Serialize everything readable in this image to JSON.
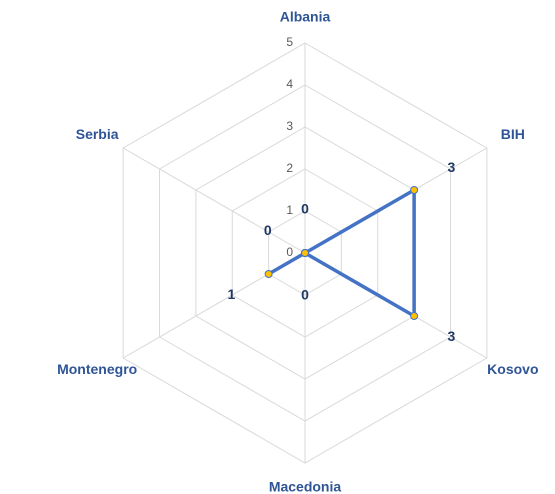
{
  "chart_data": {
    "type": "radar",
    "categories": [
      "Albania",
      "BIH",
      "Kosovo",
      "Macedonia",
      "Montenegro",
      "Serbia"
    ],
    "values": [
      0,
      3,
      3,
      0,
      1,
      0
    ],
    "color": "#4472c4",
    "marker_color": "#ffc000",
    "ylim": [
      0,
      5
    ],
    "yticks": [
      0,
      1,
      2,
      3,
      4,
      5
    ],
    "grid": true
  }
}
